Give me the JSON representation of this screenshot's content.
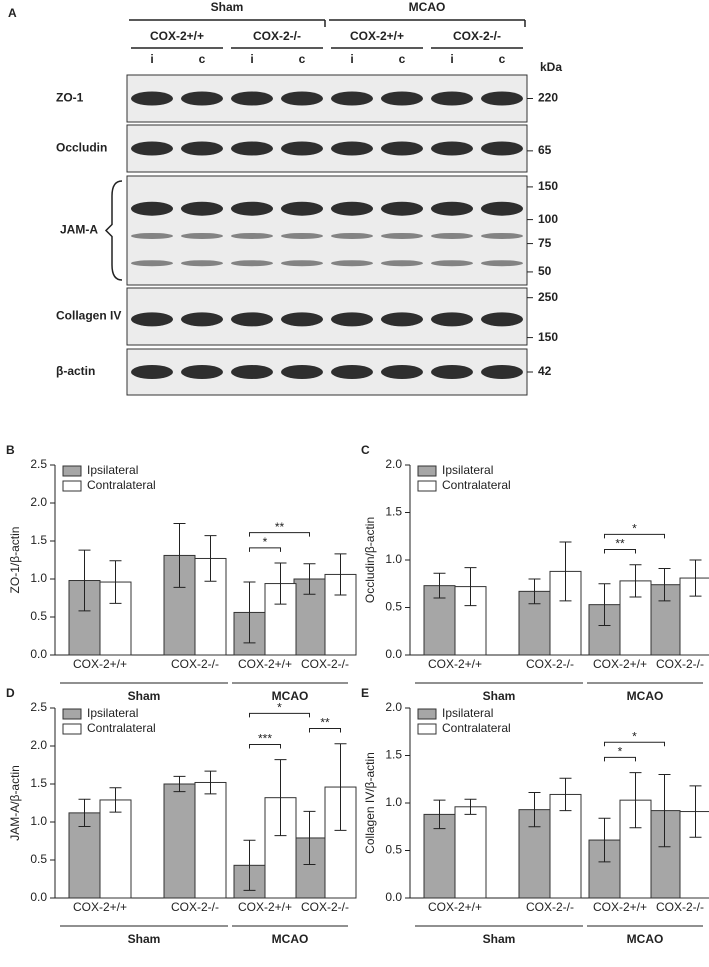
{
  "blot": {
    "panel": "A",
    "groups": [
      "Sham",
      "MCAO"
    ],
    "genotypes": [
      "COX-2+/+",
      "COX-2-/-",
      "COX-2+/+",
      "COX-2-/-"
    ],
    "lanes": [
      "i",
      "c",
      "i",
      "c",
      "i",
      "c",
      "i",
      "c"
    ],
    "unit": "kDa",
    "rows": [
      {
        "label": "ZO-1",
        "markers": [
          220
        ]
      },
      {
        "label": "Occludin",
        "markers": [
          65
        ]
      },
      {
        "label": "JAM-A",
        "markers": [
          150,
          100,
          75,
          50
        ]
      },
      {
        "label": "Collagen IV",
        "markers": [
          250,
          150
        ]
      },
      {
        "label": "β-actin",
        "markers": [
          42
        ]
      }
    ]
  },
  "chart_data": [
    {
      "type": "bar",
      "panel": "B",
      "y_label": "ZO-1/β-actin",
      "categories": [
        "COX-2+/+",
        "COX-2-/-",
        "COX-2+/+",
        "COX-2-/-"
      ],
      "groups": [
        "Sham",
        "MCAO"
      ],
      "series": [
        {
          "name": "Ipsilateral",
          "color": "#a6a6a6",
          "values": [
            0.98,
            1.31,
            0.56,
            1.0
          ],
          "errors": [
            0.4,
            0.42,
            0.4,
            0.2
          ]
        },
        {
          "name": "Contralateral",
          "color": "#ffffff",
          "values": [
            0.96,
            1.27,
            0.94,
            1.06
          ],
          "errors": [
            0.28,
            0.3,
            0.27,
            0.27
          ]
        }
      ],
      "ylim": [
        0,
        2.5
      ],
      "yticks": [
        {
          "value": 0,
          "label": "0.0"
        },
        0.5,
        {
          "value": 1,
          "label": "1.0"
        },
        1.5,
        {
          "value": 2,
          "label": "2.0"
        },
        2.5
      ],
      "annotations": [
        {
          "text": "*",
          "compare": [
            4,
            5
          ]
        },
        {
          "text": "**",
          "compare": [
            4,
            6
          ]
        }
      ]
    },
    {
      "type": "bar",
      "panel": "C",
      "y_label": "Occludin/β-actin",
      "categories": [
        "COX-2+/+",
        "COX-2-/-",
        "COX-2+/+",
        "COX-2-/-"
      ],
      "groups": [
        "Sham",
        "MCAO"
      ],
      "series": [
        {
          "name": "Ipsilateral",
          "color": "#a6a6a6",
          "values": [
            0.73,
            0.67,
            0.53,
            0.74
          ],
          "errors": [
            0.13,
            0.13,
            0.22,
            0.17
          ]
        },
        {
          "name": "Contralateral",
          "color": "#ffffff",
          "values": [
            0.72,
            0.88,
            0.78,
            0.81
          ],
          "errors": [
            0.2,
            0.31,
            0.17,
            0.19
          ]
        }
      ],
      "ylim": [
        0,
        2
      ],
      "yticks": [
        {
          "value": 0,
          "label": "0.0"
        },
        0.5,
        {
          "value": 1,
          "label": "1.0"
        },
        1.5,
        {
          "value": 2,
          "label": "2.0"
        }
      ],
      "annotations": [
        {
          "text": "**",
          "compare": [
            4,
            5
          ]
        },
        {
          "text": "*",
          "compare": [
            4,
            6
          ]
        }
      ]
    },
    {
      "type": "bar",
      "panel": "D",
      "y_label": "JAM-A/β-actin",
      "categories": [
        "COX-2+/+",
        "COX-2-/-",
        "COX-2+/+",
        "COX-2-/-"
      ],
      "groups": [
        "Sham",
        "MCAO"
      ],
      "series": [
        {
          "name": "Ipsilateral",
          "color": "#a6a6a6",
          "values": [
            1.12,
            1.5,
            0.43,
            0.79
          ],
          "errors": [
            0.18,
            0.1,
            0.33,
            0.35
          ]
        },
        {
          "name": "Contralateral",
          "color": "#ffffff",
          "values": [
            1.29,
            1.52,
            1.32,
            1.46
          ],
          "errors": [
            0.16,
            0.15,
            0.5,
            0.57
          ]
        }
      ],
      "ylim": [
        0,
        2.5
      ],
      "yticks": [
        {
          "value": 0,
          "label": "0.0"
        },
        0.5,
        {
          "value": 1,
          "label": "1.0"
        },
        1.5,
        {
          "value": 2,
          "label": "2.0"
        },
        2.5
      ],
      "annotations": [
        {
          "text": "***",
          "compare": [
            4,
            5
          ]
        },
        {
          "text": "**",
          "compare": [
            6,
            7
          ]
        },
        {
          "text": "*",
          "compare": [
            4,
            6
          ]
        }
      ]
    },
    {
      "type": "bar",
      "panel": "E",
      "y_label": "Collagen IV/β-actin",
      "categories": [
        "COX-2+/+",
        "COX-2-/-",
        "COX-2+/+",
        "COX-2-/-"
      ],
      "groups": [
        "Sham",
        "MCAO"
      ],
      "series": [
        {
          "name": "Ipsilateral",
          "color": "#a6a6a6",
          "values": [
            0.88,
            0.93,
            0.61,
            0.92
          ],
          "errors": [
            0.15,
            0.18,
            0.23,
            0.38
          ]
        },
        {
          "name": "Contralateral",
          "color": "#ffffff",
          "values": [
            0.96,
            1.09,
            1.03,
            0.91
          ],
          "errors": [
            0.08,
            0.17,
            0.29,
            0.27
          ]
        }
      ],
      "ylim": [
        0,
        2
      ],
      "yticks": [
        {
          "value": 0,
          "label": "0.0"
        },
        0.5,
        {
          "value": 1,
          "label": "1.0"
        },
        1.5,
        {
          "value": 2,
          "label": "2.0"
        }
      ],
      "annotations": [
        {
          "text": "*",
          "compare": [
            4,
            5
          ]
        },
        {
          "text": "*",
          "compare": [
            4,
            6
          ]
        }
      ]
    }
  ]
}
